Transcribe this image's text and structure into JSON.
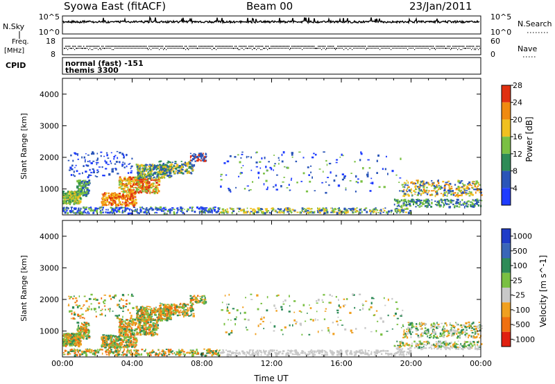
{
  "header": {
    "title": "Syowa East (fitACF)",
    "beam": "Beam 00",
    "date": "23/Jan/2011"
  },
  "summary": {
    "nsky_label": "N.Sky",
    "nsky_ticks": [
      "10^5",
      "10^0"
    ],
    "nsearch_label": "N.Search",
    "nsearch_ticks": [
      "10^5",
      "10^0"
    ],
    "freq_label_1": "Freq.",
    "freq_label_2": "[MHz]",
    "freq_ticks": [
      "18",
      "8"
    ],
    "nave_label": "Nave",
    "nave_ticks": [
      "60",
      "0"
    ],
    "cpid_label": "CPID",
    "cpid_line1": "normal (fast) -151",
    "cpid_line2": "themis 3300"
  },
  "chart_data": [
    {
      "type": "heatmap",
      "name": "power-panel",
      "ylabel": "Slant Range [km]",
      "ylim": [
        180,
        4500
      ],
      "y_ticks": [
        1000,
        2000,
        3000,
        4000
      ],
      "colorbar_label": "Power [dB]",
      "colorbar_ticks": [
        "4",
        "8",
        "12",
        "16",
        "20",
        "24",
        "28"
      ],
      "colors": [
        "#1f3cff",
        "#2a55b8",
        "#2e8b57",
        "#7ac043",
        "#f0c020",
        "#f08a10",
        "#e03010"
      ]
    },
    {
      "type": "heatmap",
      "name": "velocity-panel",
      "ylabel": "Slant Range [km]",
      "ylim": [
        180,
        4500
      ],
      "y_ticks": [
        1000,
        2000,
        3000,
        4000
      ],
      "colorbar_label": "Velocity [m s^-1]",
      "colorbar_ticks": [
        "1000",
        "500",
        "100",
        "25",
        "-25",
        "-100",
        "-500",
        "-1000"
      ],
      "colors": [
        "#1f3cc8",
        "#3a66b8",
        "#2e8b57",
        "#7ac043",
        "#c8c8c8",
        "#f0a020",
        "#f07010",
        "#e02010"
      ]
    }
  ],
  "xaxis": {
    "label": "Time UT",
    "ticks": [
      "00:00",
      "04:00",
      "08:00",
      "12:00",
      "16:00",
      "20:00",
      "00:00"
    ],
    "hours_range": [
      0,
      24
    ]
  }
}
